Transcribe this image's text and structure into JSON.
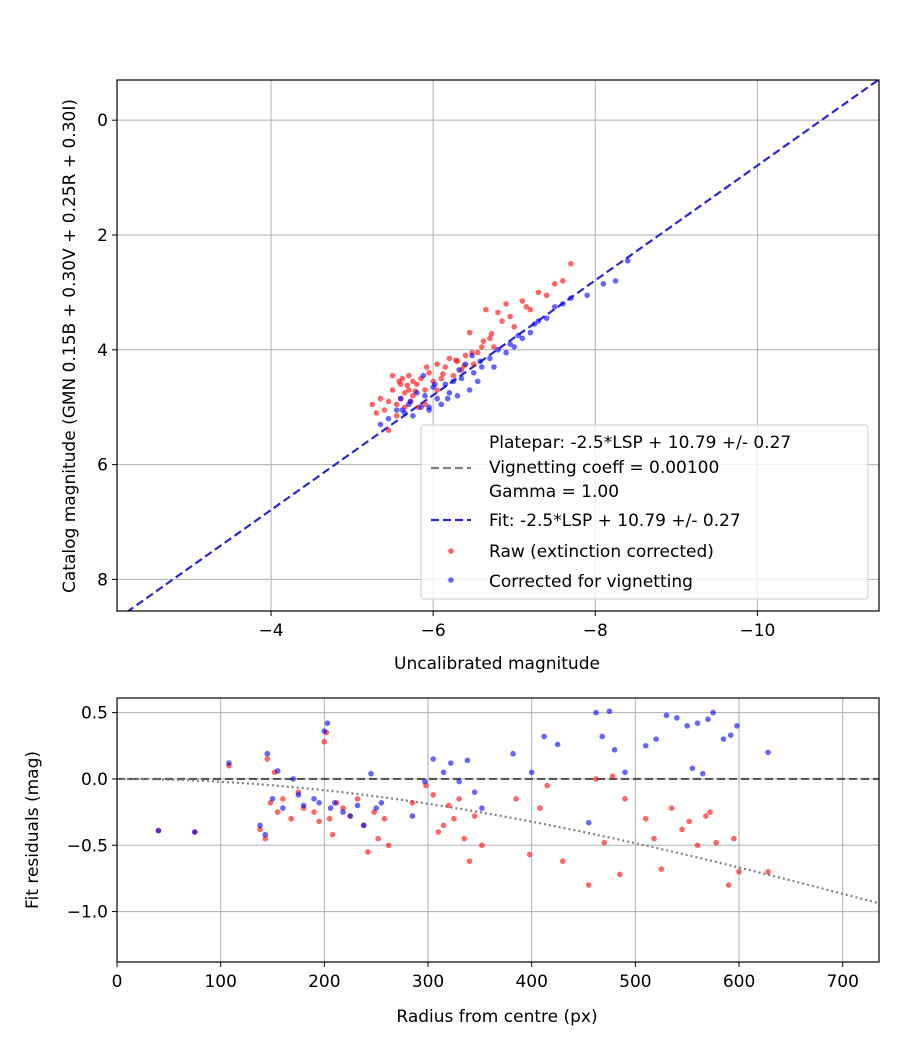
{
  "chart_data": [
    {
      "type": "scatter",
      "xlabel": "Uncalibrated magnitude",
      "ylabel": "Catalog magnitude (GMN 0.15B + 0.30V + 0.25R + 0.30I)",
      "xlim": [
        -2.1,
        -11.5
      ],
      "ylim": [
        8.55,
        -0.7
      ],
      "x_inverted": true,
      "y_inverted": true,
      "xticks": [
        -4,
        -6,
        -8,
        -10
      ],
      "xtick_labels": [
        "−4",
        "−6",
        "−8",
        "−10"
      ],
      "yticks": [
        0,
        2,
        4,
        6,
        8
      ],
      "ytick_labels": [
        "0",
        "2",
        "4",
        "6",
        "8"
      ],
      "grid": true,
      "legend_position": "lower-right",
      "legend": {
        "platepar_line1": "Platepar: -2.5*LSP + 10.79 +/- 0.27",
        "platepar_line2": "Vignetting coeff = 0.00100",
        "platepar_line3": "Gamma = 1.00",
        "fit": "Fit: -2.5*LSP + 10.79 +/- 0.27",
        "raw": "Raw (extinction corrected)",
        "corrected": "Corrected for vignetting"
      },
      "colors": {
        "raw": "#ff0000",
        "corrected": "#0000ff",
        "fit": "#2a27d6",
        "platepar": "#808080"
      },
      "fit_line": {
        "slope": 1.0,
        "intercept": 10.79
      },
      "series": [
        {
          "name": "Raw (extinction corrected)",
          "x": [
            -5.25,
            -5.3,
            -5.35,
            -5.4,
            -5.45,
            -5.5,
            -5.5,
            -5.55,
            -5.55,
            -5.6,
            -5.6,
            -5.62,
            -5.65,
            -5.65,
            -5.7,
            -5.7,
            -5.72,
            -5.75,
            -5.75,
            -5.8,
            -5.82,
            -5.85,
            -5.9,
            -5.9,
            -5.95,
            -6.0,
            -6.05,
            -6.1,
            -6.15,
            -6.2,
            -6.25,
            -6.3,
            -6.35,
            -6.4,
            -6.45,
            -6.5,
            -6.55,
            -6.6,
            -6.65,
            -6.7,
            -6.75,
            -6.8,
            -6.85,
            -6.9,
            -7.0,
            -7.1,
            -7.2,
            -7.3,
            -7.4,
            -7.5,
            -7.6,
            -7.7,
            -5.45,
            -5.58,
            -5.68,
            -5.78,
            -5.92,
            -6.05,
            -6.12,
            -6.28,
            -6.38,
            -6.48,
            -6.62,
            -6.72,
            -6.95,
            -7.15
          ],
          "y": [
            4.95,
            5.1,
            4.85,
            5.05,
            4.9,
            4.45,
            4.7,
            4.95,
            5.15,
            4.6,
            4.85,
            4.5,
            4.75,
            5.0,
            4.45,
            4.7,
            4.9,
            4.55,
            4.8,
            4.6,
            5.0,
            4.5,
            4.7,
            4.95,
            4.4,
            4.55,
            4.25,
            4.5,
            4.3,
            4.15,
            4.45,
            4.2,
            4.35,
            4.1,
            3.7,
            4.25,
            4.05,
            3.95,
            3.3,
            3.8,
            3.95,
            3.35,
            3.5,
            3.2,
            3.6,
            3.15,
            3.3,
            3.0,
            3.05,
            2.85,
            2.8,
            2.5,
            5.4,
            4.55,
            4.62,
            4.72,
            4.3,
            4.7,
            4.42,
            4.18,
            4.28,
            4.05,
            3.85,
            3.72,
            3.42,
            3.25
          ]
        },
        {
          "name": "Corrected for vignetting",
          "x": [
            -5.35,
            -5.45,
            -5.55,
            -5.6,
            -5.65,
            -5.7,
            -5.75,
            -5.8,
            -5.85,
            -5.9,
            -5.95,
            -6.0,
            -6.05,
            -6.1,
            -6.15,
            -6.2,
            -6.25,
            -6.3,
            -6.35,
            -6.4,
            -6.45,
            -6.5,
            -6.55,
            -6.6,
            -6.7,
            -6.8,
            -6.9,
            -7.0,
            -7.1,
            -7.2,
            -7.3,
            -7.4,
            -7.5,
            -7.7,
            -7.9,
            -8.1,
            -8.25,
            -8.4,
            -5.62,
            -5.72,
            -5.88,
            -6.02,
            -6.18,
            -6.32,
            -6.48,
            -6.58,
            -6.75,
            -6.95,
            -7.05,
            -7.25,
            -7.6,
            -5.95
          ],
          "y": [
            5.3,
            5.2,
            5.05,
            4.85,
            5.1,
            4.95,
            5.15,
            4.75,
            5.0,
            4.8,
            5.05,
            4.65,
            4.85,
            4.95,
            4.6,
            4.75,
            4.55,
            4.8,
            4.5,
            4.25,
            4.7,
            4.4,
            4.55,
            4.3,
            4.15,
            4.0,
            4.05,
            3.95,
            3.8,
            3.7,
            3.5,
            3.45,
            3.25,
            3.1,
            3.05,
            2.85,
            2.8,
            2.45,
            5.05,
            4.9,
            4.45,
            4.6,
            4.85,
            4.35,
            4.1,
            4.2,
            4.3,
            3.9,
            3.75,
            3.55,
            3.2,
            5.0
          ]
        }
      ]
    },
    {
      "type": "scatter",
      "xlabel": "Radius from centre (px)",
      "ylabel": "Fit residuals (mag)",
      "xlim": [
        0,
        735
      ],
      "ylim": [
        -1.38,
        0.61
      ],
      "xticks": [
        0,
        100,
        200,
        300,
        400,
        500,
        600,
        700
      ],
      "xtick_labels": [
        "0",
        "100",
        "200",
        "300",
        "400",
        "500",
        "600",
        "700"
      ],
      "yticks": [
        0.5,
        0.0,
        -0.5,
        -1.0
      ],
      "ytick_labels": [
        "0.5",
        "0.0",
        "−0.5",
        "−1.0"
      ],
      "grid": true,
      "reference_line": {
        "y": 0
      },
      "vignetting_curve": {
        "coeff": 0.001
      },
      "series": [
        {
          "name": "Raw (extinction corrected)",
          "x": [
            40,
            75,
            108,
            138,
            143,
            145,
            148,
            152,
            155,
            160,
            168,
            175,
            180,
            190,
            195,
            200,
            202,
            205,
            208,
            212,
            218,
            225,
            232,
            238,
            242,
            248,
            252,
            258,
            262,
            285,
            298,
            305,
            310,
            315,
            320,
            325,
            330,
            335,
            340,
            345,
            352,
            385,
            398,
            408,
            415,
            430,
            455,
            462,
            470,
            478,
            485,
            490,
            510,
            518,
            525,
            535,
            545,
            552,
            560,
            568,
            572,
            578,
            590,
            595,
            600,
            628
          ],
          "y": [
            -0.39,
            -0.4,
            0.1,
            -0.38,
            -0.45,
            0.15,
            -0.18,
            0.05,
            -0.25,
            -0.15,
            -0.3,
            -0.1,
            -0.22,
            -0.25,
            -0.32,
            0.28,
            0.35,
            -0.3,
            -0.42,
            -0.18,
            -0.22,
            -0.28,
            -0.15,
            -0.35,
            -0.55,
            -0.25,
            -0.45,
            -0.3,
            -0.5,
            -0.18,
            -0.05,
            -0.12,
            -0.4,
            -0.35,
            -0.2,
            -0.3,
            -0.15,
            -0.45,
            -0.62,
            -0.28,
            -0.5,
            -0.15,
            -0.57,
            -0.22,
            -0.05,
            -0.62,
            -0.8,
            0.0,
            -0.48,
            0.02,
            -0.72,
            -0.15,
            -0.3,
            -0.45,
            -0.68,
            -0.22,
            -0.38,
            -0.32,
            -0.5,
            -0.28,
            -0.25,
            -0.48,
            -0.8,
            -0.45,
            -0.7,
            -0.7
          ]
        },
        {
          "name": "Corrected for vignetting",
          "x": [
            40,
            75,
            108,
            138,
            143,
            145,
            150,
            155,
            160,
            170,
            175,
            180,
            190,
            195,
            200,
            203,
            206,
            210,
            218,
            225,
            232,
            238,
            245,
            250,
            255,
            285,
            297,
            305,
            315,
            322,
            330,
            338,
            345,
            352,
            382,
            400,
            412,
            425,
            455,
            462,
            468,
            475,
            480,
            490,
            510,
            520,
            530,
            540,
            550,
            555,
            560,
            565,
            570,
            575,
            585,
            592,
            598,
            628
          ],
          "y": [
            -0.39,
            -0.4,
            0.12,
            -0.35,
            -0.42,
            0.19,
            -0.15,
            0.06,
            -0.22,
            0.0,
            -0.12,
            -0.2,
            -0.15,
            -0.18,
            0.36,
            0.42,
            -0.22,
            -0.18,
            -0.25,
            -0.28,
            -0.2,
            -0.35,
            0.04,
            -0.22,
            -0.18,
            -0.28,
            -0.02,
            0.15,
            0.05,
            0.12,
            -0.02,
            0.14,
            -0.1,
            -0.22,
            0.19,
            0.05,
            0.32,
            0.26,
            -0.33,
            0.5,
            0.32,
            0.51,
            0.22,
            0.05,
            0.25,
            0.3,
            0.48,
            0.46,
            0.4,
            0.08,
            0.42,
            0.04,
            0.45,
            0.5,
            0.3,
            0.33,
            0.4,
            0.2
          ]
        }
      ]
    }
  ]
}
